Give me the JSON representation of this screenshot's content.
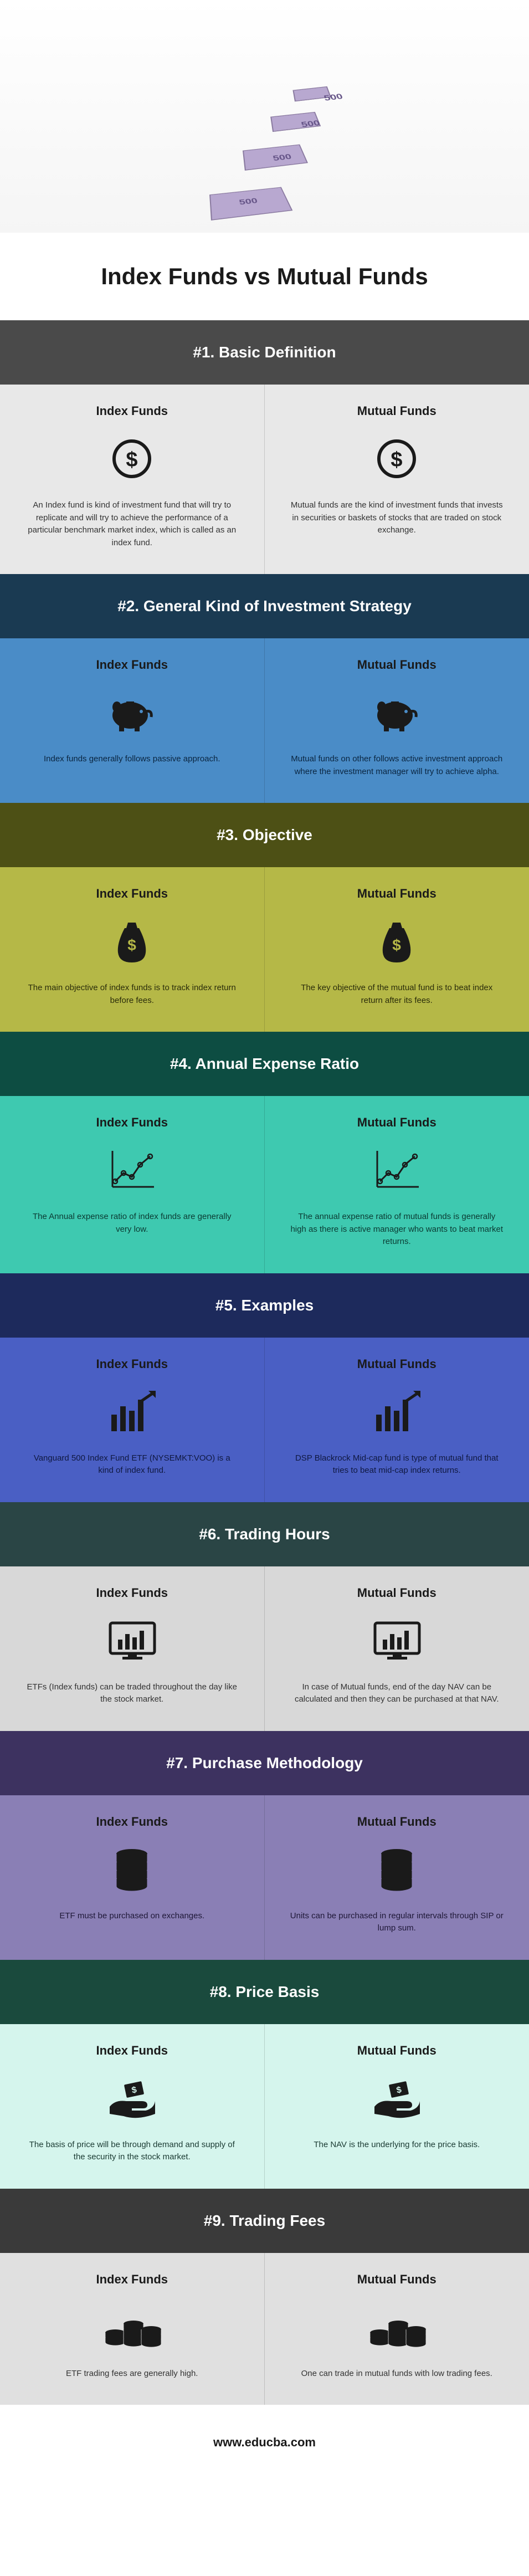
{
  "main_title": "Index Funds vs Mutual Funds",
  "footer": "www.educba.com",
  "left_label": "Index Funds",
  "right_label": "Mutual Funds",
  "sections": [
    {
      "header": "#1. Basic Definition",
      "header_bg": "#4a4a4a",
      "body_bg": "#e8e8e8",
      "title_color": "#1a1a1a",
      "text_color": "#333333",
      "icon_color": "#1a1a1a",
      "icon": "dollar-circle",
      "left": "An Index fund is kind of investment fund that will try to replicate and will try to achieve the performance of a particular benchmark market index, which is called as an index fund.",
      "right": "Mutual funds are the kind of investment funds that invests in securities or baskets of stocks that are traded on stock exchange."
    },
    {
      "header": "#2. General Kind of Investment Strategy",
      "header_bg": "#1a3a52",
      "body_bg": "#4a8cc7",
      "title_color": "#1a1a1a",
      "text_color": "#0a2540",
      "icon_color": "#1a1a1a",
      "icon": "piggy",
      "left": "Index funds generally follows passive approach.",
      "right": "Mutual funds on other follows active investment approach where the investment manager will try to achieve alpha."
    },
    {
      "header": "#3. Objective",
      "header_bg": "#4d5015",
      "body_bg": "#b5b847",
      "title_color": "#1a1a1a",
      "text_color": "#2a2c0a",
      "icon_color": "#1a1a1a",
      "icon": "money-bag",
      "left": "The main objective of index funds is to track index return before fees.",
      "right": "The key objective of the mutual fund is to beat index return after its fees."
    },
    {
      "header": "#4. Annual Expense Ratio",
      "header_bg": "#0d4d42",
      "body_bg": "#3ec9b0",
      "title_color": "#1a1a1a",
      "text_color": "#0a3a32",
      "icon_color": "#1a1a1a",
      "icon": "line-chart",
      "left": "The Annual expense ratio of index funds are generally very low.",
      "right": "The annual expense ratio of mutual funds is generally high as there is active manager who wants to beat market returns."
    },
    {
      "header": "#5. Examples",
      "header_bg": "#1d2a5c",
      "body_bg": "#4a5fc4",
      "title_color": "#1a1a1a",
      "text_color": "#0f1840",
      "icon_color": "#1a1a1a",
      "icon": "candlestick",
      "left": "Vanguard 500 Index Fund ETF (NYSEMKT:VOO) is a kind of index fund.",
      "right": "DSP Blackrock Mid-cap fund is type of mutual fund that tries to beat mid-cap index returns."
    },
    {
      "header": "#6. Trading Hours",
      "header_bg": "#2a4545",
      "body_bg": "#d8d8d8",
      "title_color": "#1a1a1a",
      "text_color": "#333333",
      "icon_color": "#1a1a1a",
      "icon": "monitor-bars",
      "left": "ETFs (Index funds) can be traded throughout the day like the stock market.",
      "right": "In case of Mutual funds, end of the day NAV can be calculated and then they can be purchased at that NAV."
    },
    {
      "header": "#7. Purchase Methodology",
      "header_bg": "#3d3260",
      "body_bg": "#8a7fb5",
      "title_color": "#1a1a1a",
      "text_color": "#1f1838",
      "icon_color": "#1a1a1a",
      "icon": "coin-stack",
      "left": "ETF must be purchased on exchanges.",
      "right": "Units can be purchased in regular intervals through SIP or lump sum."
    },
    {
      "header": "#8. Price Basis",
      "header_bg": "#1a4a3d",
      "body_bg": "#d5f5ed",
      "title_color": "#1a1a1a",
      "text_color": "#1a3a32",
      "icon_color": "#1a1a1a",
      "icon": "hand-money",
      "left": "The basis of price will be through demand and supply of the security in the stock market.",
      "right": "The NAV is the underlying for the price basis."
    },
    {
      "header": "#9. Trading Fees",
      "header_bg": "#3a3a3a",
      "body_bg": "#e0e0e0",
      "title_color": "#1a1a1a",
      "text_color": "#333333",
      "icon_color": "#1a1a1a",
      "icon": "coins-triple",
      "left": "ETF trading fees are generally high.",
      "right": "One can trade in mutual funds with low trading fees."
    }
  ]
}
